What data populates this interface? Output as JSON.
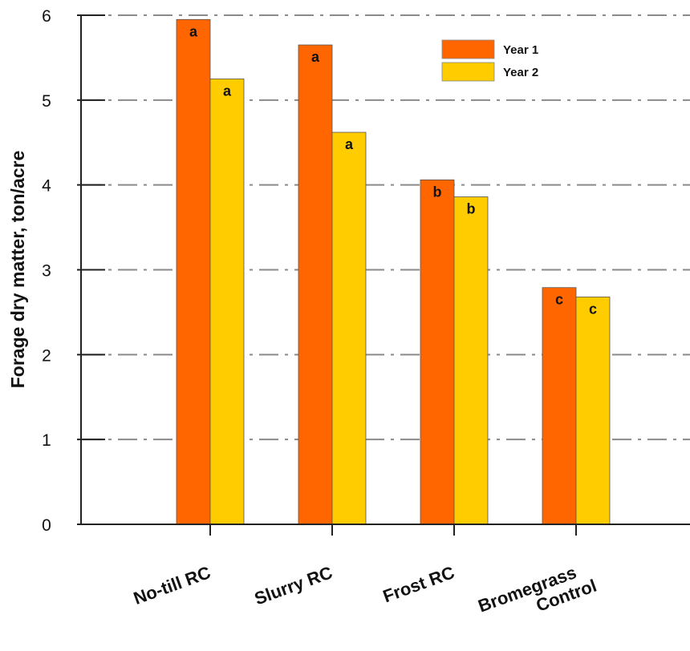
{
  "chart_data": {
    "type": "bar",
    "title": "",
    "xlabel": "",
    "ylabel": "Forage dry matter, ton/acre",
    "ylim": [
      0,
      6
    ],
    "yticks": [
      0,
      1,
      2,
      3,
      4,
      5,
      6
    ],
    "grid": true,
    "legend_position": "top-right",
    "categories": [
      [
        "No-till RC"
      ],
      [
        "Slurry RC"
      ],
      [
        "Frost RC"
      ],
      [
        "Bromegrass",
        "Control"
      ]
    ],
    "series": [
      {
        "name": "Year 1",
        "color": "#FF6600",
        "values": [
          5.95,
          5.65,
          4.06,
          2.79
        ],
        "labels": [
          "a",
          "a",
          "b",
          "c"
        ]
      },
      {
        "name": "Year 2",
        "color": "#FFCC00",
        "values": [
          5.25,
          4.62,
          3.86,
          2.68
        ],
        "labels": [
          "a",
          "a",
          "b",
          "c"
        ]
      }
    ]
  }
}
